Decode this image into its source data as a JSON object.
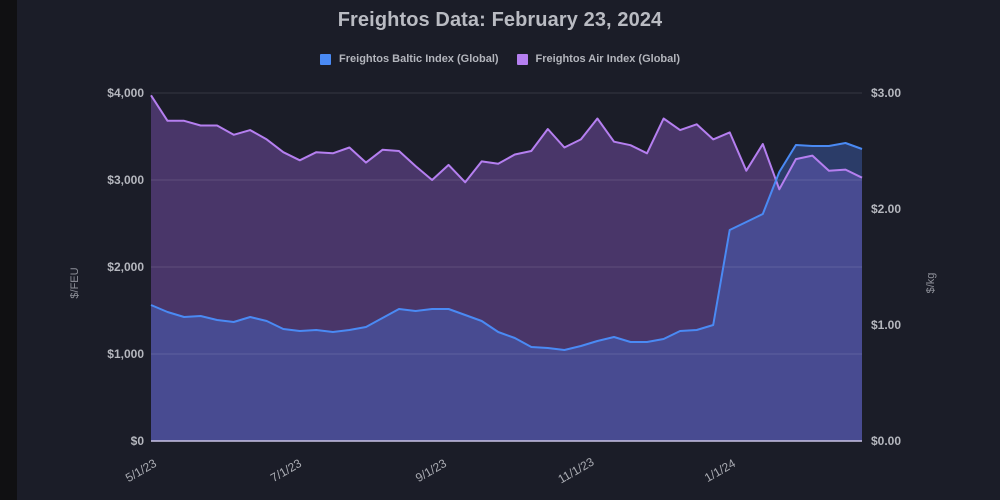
{
  "chart_data": {
    "type": "area",
    "title": "Freightos Data: February 23, 2024",
    "legend_position": "top",
    "grid": true,
    "x_tick_labels": [
      "5/1/23",
      "7/1/23",
      "9/1/23",
      "11/1/23",
      "1/1/24"
    ],
    "y_left": {
      "label": "$/FEU",
      "ticks": [
        "$0",
        "$1,000",
        "$2,000",
        "$3,000",
        "$4,000"
      ],
      "range": [
        0,
        4000
      ]
    },
    "y_right": {
      "label": "$/kg",
      "ticks": [
        "$0.00",
        "$1.00",
        "$2.00",
        "$3.00"
      ],
      "range": [
        0,
        3
      ]
    },
    "x_count": 44,
    "x_start": "5/1/23",
    "x_interval": "weekly",
    "series": [
      {
        "name": "Freightos Baltic Index (Global)",
        "axis": "left",
        "color": "#4a8af4",
        "values": [
          1563,
          1483,
          1425,
          1437,
          1391,
          1368,
          1425,
          1379,
          1287,
          1264,
          1276,
          1253,
          1276,
          1310,
          1414,
          1517,
          1494,
          1517,
          1517,
          1448,
          1379,
          1253,
          1184,
          1080,
          1069,
          1046,
          1092,
          1149,
          1195,
          1138,
          1138,
          1172,
          1264,
          1276,
          1333,
          2425,
          2517,
          2609,
          3092,
          3402,
          3391,
          3391,
          3425,
          3356
        ]
      },
      {
        "name": "Freightos Air Index (Global)",
        "axis": "right",
        "color": "#b57ff0",
        "values": [
          2.98,
          2.76,
          2.76,
          2.72,
          2.72,
          2.64,
          2.68,
          2.6,
          2.49,
          2.42,
          2.49,
          2.48,
          2.53,
          2.4,
          2.51,
          2.5,
          2.37,
          2.25,
          2.38,
          2.23,
          2.41,
          2.39,
          2.47,
          2.5,
          2.69,
          2.53,
          2.6,
          2.78,
          2.58,
          2.55,
          2.48,
          2.78,
          2.68,
          2.73,
          2.6,
          2.66,
          2.33,
          2.56,
          2.17,
          2.43,
          2.46,
          2.33,
          2.34,
          2.27
        ]
      }
    ]
  },
  "legend": {
    "baltic_label": "Freightos Baltic Index (Global)",
    "air_label": "Freightos Air Index (Global)",
    "baltic_color": "#4a8af4",
    "air_color": "#b57ff0"
  }
}
